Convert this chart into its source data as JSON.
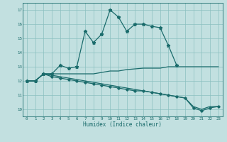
{
  "xlabel": "Humidex (Indice chaleur)",
  "bg_color": "#c2e0e0",
  "grid_color": "#8abfbf",
  "line_color": "#1a6b6b",
  "xlim": [
    -0.5,
    23.5
  ],
  "ylim": [
    9.5,
    17.5
  ],
  "xticks": [
    0,
    1,
    2,
    3,
    4,
    5,
    6,
    7,
    8,
    9,
    10,
    11,
    12,
    13,
    14,
    15,
    16,
    17,
    18,
    19,
    20,
    21,
    22,
    23
  ],
  "yticks": [
    10,
    11,
    12,
    13,
    14,
    15,
    16,
    17
  ],
  "series": [
    {
      "x": [
        0,
        1,
        2,
        3,
        4,
        5,
        6,
        7,
        8,
        9,
        10,
        11,
        12,
        13,
        14,
        15,
        16,
        17,
        18,
        19,
        20,
        21,
        22,
        23
      ],
      "y": [
        12,
        12,
        12.5,
        12.5,
        12.5,
        12.5,
        12.5,
        12.5,
        12.5,
        12.6,
        12.7,
        12.7,
        12.8,
        12.85,
        12.9,
        12.9,
        12.9,
        13.0,
        13.0,
        13.0,
        13.0,
        13.0,
        13.0,
        13.0
      ],
      "marker": null,
      "lw": 0.9
    },
    {
      "x": [
        0,
        1,
        2,
        3,
        4,
        5,
        6,
        7,
        8,
        9,
        10,
        11,
        12,
        13,
        14,
        15,
        16,
        17,
        18,
        19,
        20,
        21,
        22,
        23
      ],
      "y": [
        12,
        12,
        12.5,
        12.3,
        12.2,
        12.1,
        12.0,
        11.9,
        11.8,
        11.7,
        11.6,
        11.5,
        11.4,
        11.3,
        11.3,
        11.2,
        11.1,
        11.0,
        10.9,
        10.8,
        10.1,
        9.9,
        10.1,
        10.2
      ],
      "marker": "D",
      "markersize": 1.8,
      "lw": 0.9
    },
    {
      "x": [
        0,
        1,
        2,
        3,
        4,
        5,
        6,
        7,
        8,
        9,
        10,
        11,
        12,
        13,
        14,
        15,
        16,
        17,
        18,
        19,
        20,
        21,
        22,
        23
      ],
      "y": [
        12,
        12,
        12.5,
        12.4,
        12.3,
        12.2,
        12.1,
        12.0,
        11.9,
        11.8,
        11.7,
        11.6,
        11.5,
        11.4,
        11.3,
        11.2,
        11.1,
        11.0,
        10.9,
        10.8,
        10.2,
        10.0,
        10.2,
        10.2
      ],
      "marker": null,
      "lw": 0.9
    },
    {
      "x": [
        0,
        1,
        2,
        3,
        4,
        5,
        6,
        7,
        8,
        9,
        10,
        11,
        12,
        13,
        14,
        15,
        16,
        17,
        18
      ],
      "y": [
        12,
        12,
        12.5,
        12.5,
        13.1,
        12.9,
        13.0,
        15.5,
        14.7,
        15.3,
        17.0,
        16.5,
        15.5,
        16.0,
        16.0,
        15.85,
        15.75,
        14.5,
        13.1
      ],
      "marker": "*",
      "markersize": 3.5,
      "lw": 0.9
    }
  ]
}
